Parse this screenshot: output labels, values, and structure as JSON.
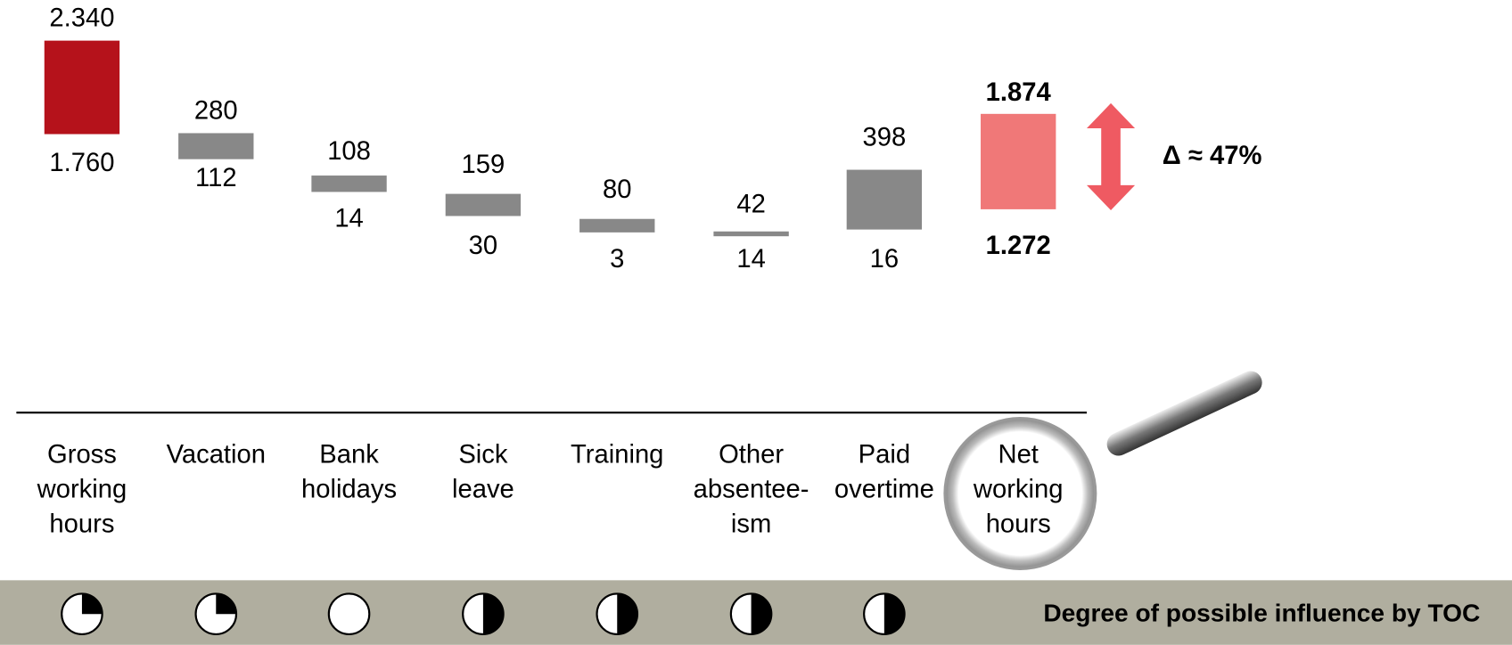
{
  "items": [
    {
      "label": [
        "Gross",
        "working",
        "hours"
      ],
      "high": "2.340",
      "low": "1.760",
      "influence": 0.25
    },
    {
      "label": [
        "Vacation"
      ],
      "high": "280",
      "low": "112",
      "influence": 0.25
    },
    {
      "label": [
        "Bank",
        "holidays"
      ],
      "high": "108",
      "low": "14",
      "influence": 0
    },
    {
      "label": [
        "Sick",
        "leave"
      ],
      "high": "159",
      "low": "30",
      "influence": 0.5
    },
    {
      "label": [
        "Training"
      ],
      "high": "80",
      "low": "3",
      "influence": 0.5
    },
    {
      "label": [
        "Other",
        "absentee-",
        "ism"
      ],
      "high": "42",
      "low": "14",
      "influence": 0.5
    },
    {
      "label": [
        "Paid",
        "overtime"
      ],
      "high": "398",
      "low": "16",
      "influence": 0.5
    },
    {
      "label": [
        "Net",
        "working",
        "hours"
      ],
      "high": "1.874",
      "low": "1.272"
    }
  ],
  "delta": "Δ ≈ 47%",
  "influence_title": "Degree of possible influence by TOC"
}
